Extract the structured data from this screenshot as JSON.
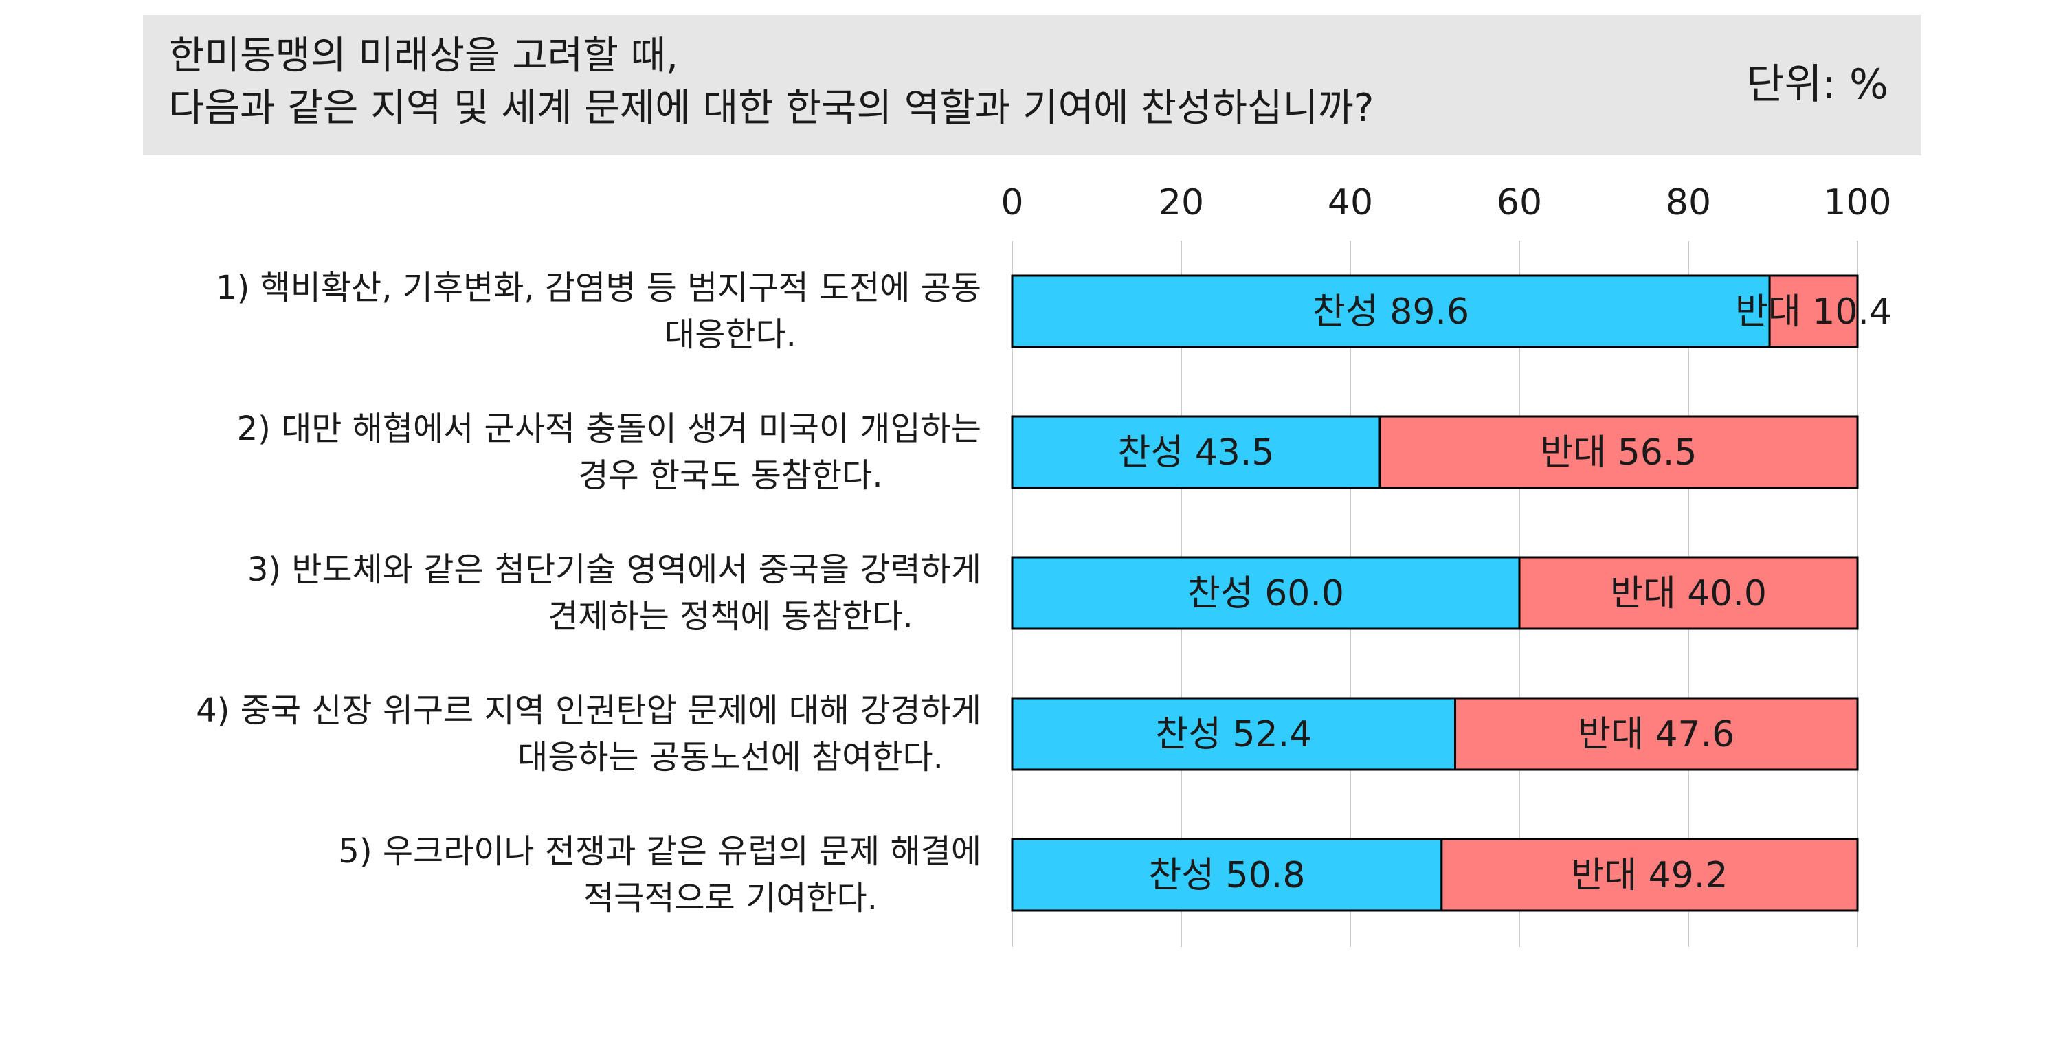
{
  "header": {
    "title_line_1": "한미동맹의 미래상을 고려할 때,",
    "title_line_2": "다음과 같은 지역 및 세계 문제에 대한 한국의 역할과 기여에 찬성하십니까?",
    "unit": "단위: %"
  },
  "colors": {
    "agree": "#33ccff",
    "oppose": "#ff7f7f",
    "grid": "#cccccc",
    "header_bg": "#e6e6e6"
  },
  "chart_data": {
    "type": "bar",
    "orientation": "horizontal",
    "stacked": true,
    "x_ticks": [
      0,
      20,
      40,
      60,
      80,
      100
    ],
    "xlim": [
      0,
      100
    ],
    "x_axis_position": "top",
    "grid": true,
    "categories": [
      [
        "1) 핵비확산, 기후변화, 감염병 등 범지구적 도전에 공동",
        "대응한다."
      ],
      [
        "2) 대만 해협에서 군사적 충돌이 생겨 미국이 개입하는",
        "경우 한국도 동참한다."
      ],
      [
        "3) 반도체와 같은 첨단기술 영역에서 중국을 강력하게",
        "견제하는 정책에 동참한다."
      ],
      [
        "4) 중국 신장 위구르 지역 인권탄압 문제에 대해 강경하게",
        "대응하는 공동노선에 참여한다."
      ],
      [
        "5) 우크라이나 전쟁과 같은 유럽의 문제 해결에",
        "적극적으로 기여한다."
      ]
    ],
    "series": [
      {
        "name": "찬성",
        "values": [
          89.6,
          43.5,
          60.0,
          52.4,
          50.8
        ]
      },
      {
        "name": "반대",
        "values": [
          10.4,
          56.5,
          40.0,
          47.6,
          49.2
        ]
      }
    ],
    "data_labels": [
      [
        "찬성 89.6",
        "찬성 43.5",
        "찬성 60.0",
        "찬성 52.4",
        "찬성 50.8"
      ],
      [
        "반대 10.4",
        "반대 56.5",
        "반대 40.0",
        "반대 47.6",
        "반대 49.2"
      ]
    ]
  }
}
